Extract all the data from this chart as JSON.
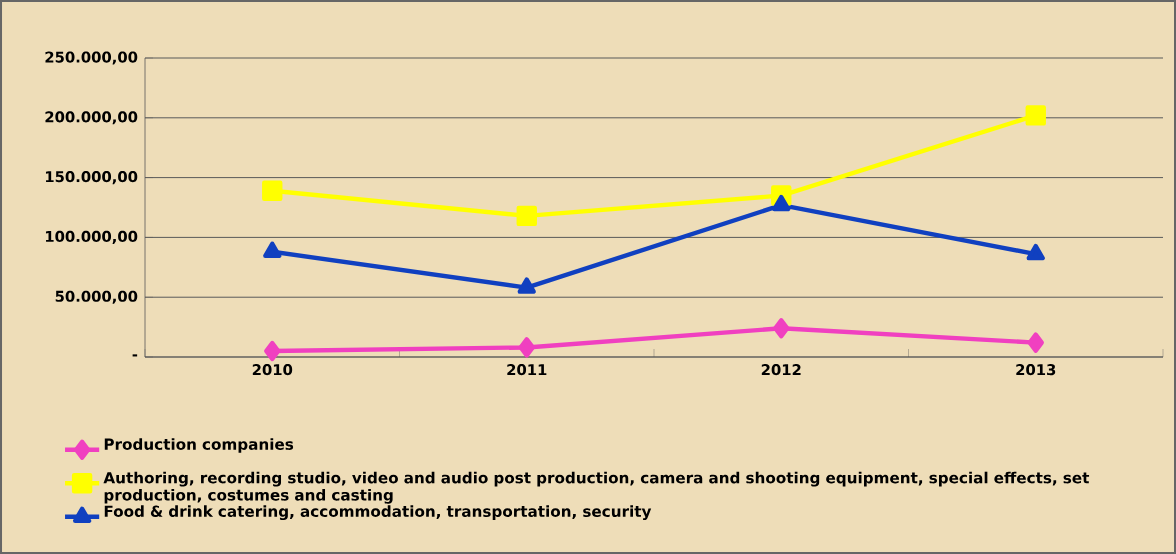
{
  "chart_data": {
    "type": "line",
    "categories": [
      "2010",
      "2011",
      "2012",
      "2013"
    ],
    "series": [
      {
        "name": "Production companies",
        "color": "#f040c0",
        "marker": "diamond",
        "values": [
          5000,
          8000,
          24000,
          12000
        ]
      },
      {
        "name": "Authoring, recording studio, video and audio post production, camera and shooting equipment, special effects, set production, costumes and casting",
        "color": "#ffff00",
        "marker": "square",
        "values": [
          139000,
          118000,
          135000,
          202000
        ]
      },
      {
        "name": "Food & drink catering, accommodation, transportation, security",
        "color": "#1040c0",
        "marker": "triangle",
        "values": [
          88000,
          58000,
          127000,
          86000
        ]
      }
    ],
    "ylim": [
      0,
      250000
    ],
    "yticks": [
      {
        "value": 0,
        "label": "-"
      },
      {
        "value": 50000,
        "label": "50.000,00"
      },
      {
        "value": 100000,
        "label": "100.000,00"
      },
      {
        "value": 150000,
        "label": "150.000,00"
      },
      {
        "value": 200000,
        "label": "200.000,00"
      },
      {
        "value": 250000,
        "label": "250.000,00"
      }
    ],
    "grid": "y",
    "legend": "bottom",
    "line_style": "solid"
  }
}
